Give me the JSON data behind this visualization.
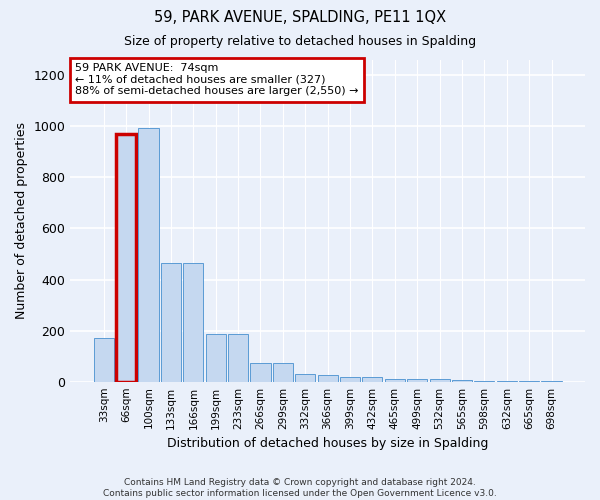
{
  "title1": "59, PARK AVENUE, SPALDING, PE11 1QX",
  "title2": "Size of property relative to detached houses in Spalding",
  "xlabel": "Distribution of detached houses by size in Spalding",
  "ylabel": "Number of detached properties",
  "bar_color": "#c5d8f0",
  "bar_edge_color": "#5b9bd5",
  "highlight_bar_index": 1,
  "highlight_edge_color": "#cc0000",
  "annotation_box_color": "#cc0000",
  "annotation_text": "59 PARK AVENUE:  74sqm\n← 11% of detached houses are smaller (327)\n88% of semi-detached houses are larger (2,550) →",
  "categories": [
    "33sqm",
    "66sqm",
    "100sqm",
    "133sqm",
    "166sqm",
    "199sqm",
    "233sqm",
    "266sqm",
    "299sqm",
    "332sqm",
    "366sqm",
    "399sqm",
    "432sqm",
    "465sqm",
    "499sqm",
    "532sqm",
    "565sqm",
    "598sqm",
    "632sqm",
    "665sqm",
    "698sqm"
  ],
  "values": [
    170,
    970,
    995,
    465,
    465,
    185,
    185,
    75,
    75,
    30,
    25,
    20,
    20,
    12,
    12,
    10,
    5,
    4,
    3,
    2,
    2
  ],
  "ylim": [
    0,
    1260
  ],
  "yticks": [
    0,
    200,
    400,
    600,
    800,
    1000,
    1200
  ],
  "footer": "Contains HM Land Registry data © Crown copyright and database right 2024.\nContains public sector information licensed under the Open Government Licence v3.0.",
  "bg_color": "#eaf0fa",
  "grid_color": "#ffffff"
}
